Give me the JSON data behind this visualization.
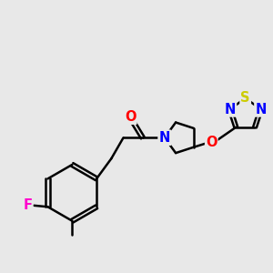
{
  "bg_color": "#e8e8e8",
  "bond_color": "#000000",
  "bond_width": 1.8,
  "atom_colors": {
    "O": "#ff0000",
    "N": "#0000ff",
    "F": "#ff00cc",
    "S": "#cccc00",
    "C": "#000000"
  },
  "font_size": 10.5
}
